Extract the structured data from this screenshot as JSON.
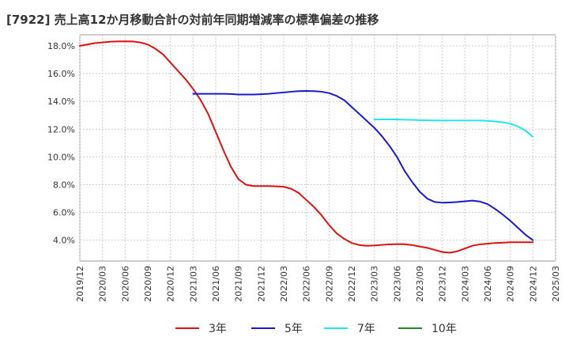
{
  "chart_data": {
    "type": "line",
    "title": "[7922]  売上高12か月移動合計の対前年同期増減率の標準偏差の推移",
    "x_ticks": [
      "2019/12",
      "2020/03",
      "2020/06",
      "2020/09",
      "2020/12",
      "2021/03",
      "2021/06",
      "2021/09",
      "2021/12",
      "2022/03",
      "2022/06",
      "2022/09",
      "2022/12",
      "2023/03",
      "2023/06",
      "2023/09",
      "2023/12",
      "2024/03",
      "2024/06",
      "2024/09",
      "2024/12",
      "2025/03"
    ],
    "y_ticks": [
      "4.0%",
      "6.0%",
      "8.0%",
      "10.0%",
      "12.0%",
      "14.0%",
      "16.0%",
      "18.0%"
    ],
    "ylim": [
      2.5,
      18.8
    ],
    "grid": true,
    "legend_position": "bottom",
    "series": [
      {
        "name": "3年",
        "color": "#dd1111",
        "x": [
          "2019/12",
          "2020/01",
          "2020/02",
          "2020/03",
          "2020/04",
          "2020/05",
          "2020/06",
          "2020/07",
          "2020/08",
          "2020/09",
          "2020/10",
          "2020/11",
          "2020/12",
          "2021/01",
          "2021/02",
          "2021/03",
          "2021/04",
          "2021/05",
          "2021/06",
          "2021/07",
          "2021/08",
          "2021/09",
          "2021/10",
          "2021/11",
          "2021/12",
          "2022/01",
          "2022/02",
          "2022/03",
          "2022/04",
          "2022/05",
          "2022/06",
          "2022/07",
          "2022/08",
          "2022/09",
          "2022/10",
          "2022/11",
          "2022/12",
          "2023/01",
          "2023/02",
          "2023/03",
          "2023/04",
          "2023/05",
          "2023/06",
          "2023/07",
          "2023/08",
          "2023/09",
          "2023/10",
          "2023/11",
          "2023/12",
          "2024/01",
          "2024/02",
          "2024/03",
          "2024/04",
          "2024/05",
          "2024/06",
          "2024/07",
          "2024/08",
          "2024/09",
          "2024/10",
          "2024/11",
          "2024/12"
        ],
        "values": [
          18.0,
          18.1,
          18.2,
          18.25,
          18.3,
          18.32,
          18.33,
          18.32,
          18.25,
          18.1,
          17.8,
          17.4,
          16.8,
          16.2,
          15.6,
          14.9,
          14.1,
          13.1,
          11.8,
          10.5,
          9.3,
          8.4,
          8.0,
          7.9,
          7.9,
          7.9,
          7.88,
          7.85,
          7.7,
          7.4,
          6.9,
          6.4,
          5.8,
          5.1,
          4.5,
          4.1,
          3.8,
          3.65,
          3.6,
          3.62,
          3.66,
          3.7,
          3.72,
          3.71,
          3.65,
          3.55,
          3.45,
          3.3,
          3.15,
          3.1,
          3.2,
          3.4,
          3.6,
          3.7,
          3.75,
          3.8,
          3.82,
          3.85,
          3.85,
          3.85,
          3.85
        ]
      },
      {
        "name": "5年",
        "color": "#1a1acc",
        "x": [
          "2021/03",
          "2021/04",
          "2021/05",
          "2021/06",
          "2021/07",
          "2021/08",
          "2021/09",
          "2021/10",
          "2021/11",
          "2021/12",
          "2022/01",
          "2022/02",
          "2022/03",
          "2022/04",
          "2022/05",
          "2022/06",
          "2022/07",
          "2022/08",
          "2022/09",
          "2022/10",
          "2022/11",
          "2022/12",
          "2023/01",
          "2023/02",
          "2023/03",
          "2023/04",
          "2023/05",
          "2023/06",
          "2023/07",
          "2023/08",
          "2023/09",
          "2023/10",
          "2023/11",
          "2023/12",
          "2024/01",
          "2024/02",
          "2024/03",
          "2024/04",
          "2024/05",
          "2024/06",
          "2024/07",
          "2024/08",
          "2024/09",
          "2024/10",
          "2024/11",
          "2024/12"
        ],
        "values": [
          14.55,
          14.55,
          14.55,
          14.55,
          14.55,
          14.53,
          14.5,
          14.5,
          14.5,
          14.52,
          14.55,
          14.6,
          14.65,
          14.7,
          14.74,
          14.75,
          14.74,
          14.7,
          14.6,
          14.4,
          14.1,
          13.6,
          13.1,
          12.6,
          12.1,
          11.5,
          10.8,
          10.0,
          9.0,
          8.2,
          7.5,
          7.0,
          6.75,
          6.7,
          6.72,
          6.75,
          6.8,
          6.85,
          6.78,
          6.6,
          6.25,
          5.85,
          5.4,
          4.9,
          4.4,
          4.0
        ]
      },
      {
        "name": "7年",
        "color": "#22e5ee",
        "x": [
          "2023/03",
          "2023/04",
          "2023/05",
          "2023/06",
          "2023/07",
          "2023/08",
          "2023/09",
          "2023/10",
          "2023/11",
          "2023/12",
          "2024/01",
          "2024/02",
          "2024/03",
          "2024/04",
          "2024/05",
          "2024/06",
          "2024/07",
          "2024/08",
          "2024/09",
          "2024/10",
          "2024/11",
          "2024/12"
        ],
        "values": [
          12.7,
          12.7,
          12.7,
          12.7,
          12.68,
          12.67,
          12.65,
          12.64,
          12.63,
          12.62,
          12.62,
          12.62,
          12.62,
          12.62,
          12.62,
          12.6,
          12.55,
          12.5,
          12.4,
          12.2,
          11.9,
          11.45
        ]
      },
      {
        "name": "10年",
        "color": "#22882a",
        "x": [],
        "values": []
      }
    ]
  }
}
